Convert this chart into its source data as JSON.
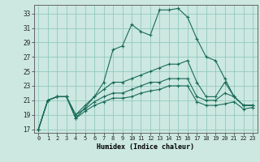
{
  "xlabel": "Humidex (Indice chaleur)",
  "bg_color": "#cce8e0",
  "grid_color": "#88c4b8",
  "line_color": "#1a6b5a",
  "x_ticks": [
    0,
    1,
    2,
    3,
    4,
    5,
    6,
    7,
    8,
    9,
    10,
    11,
    12,
    13,
    14,
    15,
    16,
    17,
    18,
    19,
    20,
    21,
    22,
    23
  ],
  "y_ticks": [
    17,
    19,
    21,
    23,
    25,
    27,
    29,
    31,
    33
  ],
  "xlim": [
    -0.5,
    23.5
  ],
  "ylim": [
    16.5,
    34.2
  ],
  "line1": [
    17.0,
    21.0,
    21.5,
    21.5,
    18.5,
    20.0,
    21.5,
    23.5,
    28.0,
    28.5,
    31.5,
    30.5,
    30.0,
    33.5,
    33.5,
    33.7,
    32.5,
    29.5,
    27.0,
    26.5,
    24.0,
    21.5,
    20.3,
    20.3
  ],
  "line2": [
    17.0,
    21.0,
    21.5,
    21.5,
    19.0,
    20.3,
    21.5,
    22.5,
    23.5,
    23.5,
    24.0,
    24.5,
    25.0,
    25.5,
    26.0,
    26.0,
    26.5,
    23.5,
    21.5,
    21.5,
    23.5,
    21.5,
    20.3,
    20.3
  ],
  "line3": [
    17.0,
    21.0,
    21.5,
    21.5,
    19.0,
    19.8,
    20.8,
    21.5,
    22.0,
    22.0,
    22.5,
    23.0,
    23.5,
    23.5,
    24.0,
    24.0,
    24.0,
    21.5,
    21.0,
    21.0,
    22.0,
    21.5,
    20.3,
    20.3
  ],
  "line4": [
    17.0,
    21.0,
    21.5,
    21.5,
    18.5,
    19.5,
    20.3,
    20.8,
    21.3,
    21.3,
    21.5,
    22.0,
    22.3,
    22.5,
    23.0,
    23.0,
    23.0,
    20.8,
    20.3,
    20.3,
    20.5,
    20.8,
    19.8,
    20.0
  ]
}
